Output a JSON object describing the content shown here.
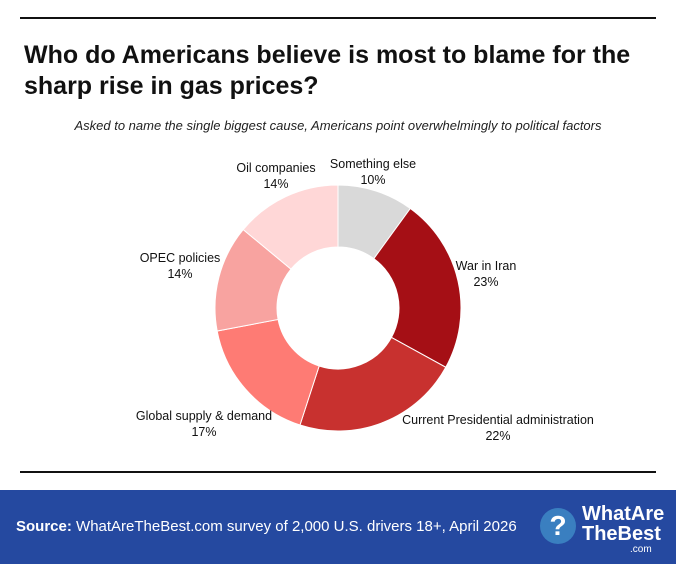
{
  "header": {
    "title": "Who do Americans believe is most to blame for the sharp rise in gas prices?",
    "subtitle": "Asked to name the single biggest cause, Americans point overwhelmingly to political factors"
  },
  "chart_data": {
    "type": "pie",
    "donut": true,
    "categories": [
      "Something else",
      "War in Iran",
      "Current Presidential administration",
      "Global supply & demand",
      "OPEC policies",
      "Oil companies"
    ],
    "values": [
      10,
      23,
      22,
      17,
      14,
      14
    ],
    "labels": [
      "10%",
      "23%",
      "22%",
      "17%",
      "14%",
      "14%"
    ],
    "colors": [
      "#d9d9d9",
      "#a50f15",
      "#c8312f",
      "#fe7b74",
      "#f8a3a0",
      "#ffd7d7"
    ]
  },
  "footer": {
    "source_label": "Source:",
    "source_text": "WhatAreTheBest.com survey of 2,000 U.S. drivers 18+, April 2026",
    "logo_text": "WhatAreTheBest.com",
    "bg_color": "#2549a0"
  }
}
